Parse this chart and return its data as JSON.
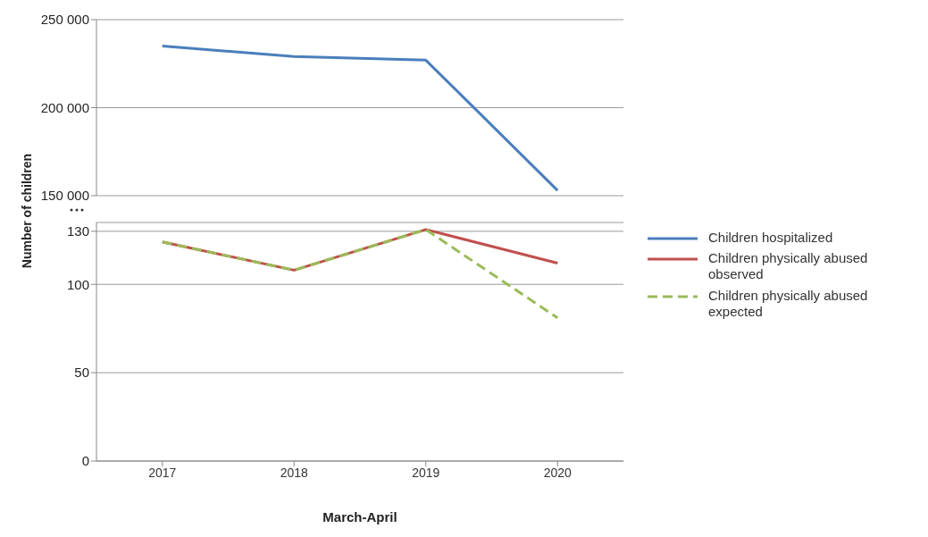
{
  "chart_data": [
    {
      "type": "line",
      "categories": [
        "2017",
        "2018",
        "2019",
        "2020"
      ],
      "ylim": [
        150000,
        250000
      ],
      "yticks": [
        {
          "value": 150000,
          "label": "150 000"
        },
        {
          "value": 200000,
          "label": "200 000"
        },
        {
          "value": 250000,
          "label": "250 000"
        }
      ],
      "grid": "y",
      "legend": "right",
      "marker": "none",
      "tick_labels": "y",
      "series": [
        {
          "name": "Children hospitalized",
          "color": "#4a7ebb",
          "values": [
            235000,
            229000,
            227000,
            153000
          ]
        }
      ]
    },
    {
      "type": "line",
      "categories": [
        "2017",
        "2018",
        "2019",
        "2020"
      ],
      "xlabel": "March-April",
      "ylabel": "Number of children",
      "ylim": [
        0,
        135
      ],
      "yticks": [
        0,
        50,
        100,
        130
      ],
      "grid": "y",
      "legend": "right",
      "marker": "none",
      "series": [
        {
          "name": "Children physically abused observed",
          "color": "#c0504d",
          "values": [
            124,
            108,
            131,
            112
          ]
        },
        {
          "name": "Children physically abused expected",
          "color": "#9bbb59",
          "values": [
            124,
            108,
            131,
            81
          ],
          "line_style": "dashed"
        }
      ]
    }
  ]
}
